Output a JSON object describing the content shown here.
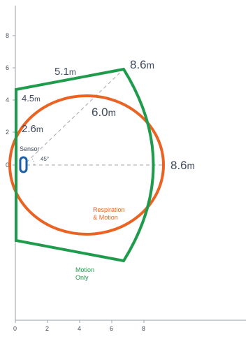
{
  "axes": {
    "x_ticks": [
      "0",
      "2",
      "4",
      "6",
      "8"
    ],
    "y_ticks": [
      "8",
      "6",
      "4",
      "2",
      "0"
    ]
  },
  "dimensions": {
    "top_edge": {
      "value": "5.1",
      "unit": "m"
    },
    "corner": {
      "value": "8.6",
      "unit": "m"
    },
    "left_height": {
      "value": "4.5",
      "unit": "m"
    },
    "diagonal": {
      "value": "6.0",
      "unit": "m"
    },
    "ellipse_height": {
      "value": "2.6",
      "unit": "m"
    },
    "range": {
      "value": "8.6",
      "unit": "m"
    }
  },
  "labels": {
    "sensor": "Sensor",
    "angle": "45°",
    "respiration_line1": "Respiration",
    "respiration_line2": "& Motion",
    "motion_line1": "Motion",
    "motion_line2": "Only"
  },
  "colors": {
    "motion_zone": "#1f9b4c",
    "respiration_zone": "#ea6323",
    "sensor": "#1b5fa8",
    "guide_lines": "#a3a8af",
    "axis": "#9aa0a8"
  }
}
